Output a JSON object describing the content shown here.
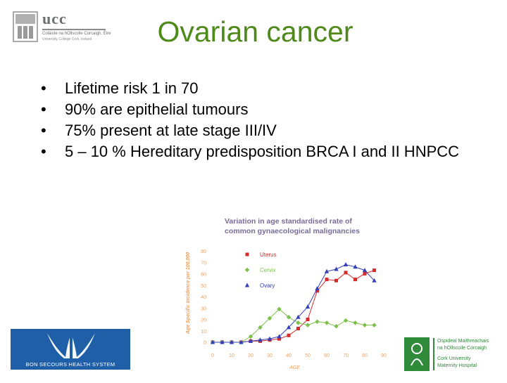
{
  "ucc_logo": {
    "name": "ucc",
    "subtitle_irish": "Coláiste na hOllscoile Corcaigh, Éire",
    "subtitle_english": "University College Cork, Ireland"
  },
  "slide": {
    "title": "Ovarian cancer",
    "bullet_marker": "•",
    "bullets": [
      "Lifetime risk 1 in 70",
      "90% are epithelial tumours",
      "75% present at late stage III/IV",
      "5 – 10 % Hereditary predisposition BRCA I and II HNPCC"
    ]
  },
  "bon_secours_logo": {
    "text": "BON SECOURS HEALTH SYSTEM"
  },
  "cumh_logo": {
    "line1": "Ospideal Maithreachais",
    "line2": "na hOllscoile Corcaigh",
    "line3": "Cork University",
    "line4": "Maternity Hospital"
  },
  "colors": {
    "title": "#4e8a1a",
    "chart_title": "#7b6a9b",
    "uterus": "#d42a2a",
    "cervix": "#7cc04a",
    "ovary": "#3540b8",
    "axis_text": "#f0a060"
  },
  "chart_data": {
    "type": "line",
    "title": "Variation in age standardised rate of common gynaecological malignancies",
    "xlabel": "AGE",
    "ylabel": "Age Specific Incidence per 100,000",
    "x": [
      0,
      10,
      20,
      30,
      40,
      50,
      60,
      70,
      80,
      90
    ],
    "xlim": [
      0,
      90
    ],
    "ylim": [
      0,
      80
    ],
    "yticks": [
      0,
      10,
      20,
      30,
      40,
      50,
      60,
      70,
      80
    ],
    "series": [
      {
        "name": "Uterus",
        "marker": "square",
        "x": [
          0,
          5,
          10,
          15,
          20,
          25,
          30,
          35,
          40,
          45,
          50,
          55,
          60,
          65,
          70,
          75,
          80,
          85
        ],
        "values": [
          0,
          0,
          0,
          0,
          1,
          1,
          2,
          3,
          6,
          12,
          20,
          45,
          55,
          54,
          61,
          55,
          60,
          63
        ]
      },
      {
        "name": "Cervix",
        "marker": "diamond",
        "x": [
          0,
          5,
          10,
          15,
          20,
          25,
          30,
          35,
          40,
          45,
          50,
          55,
          60,
          65,
          70,
          75,
          80,
          85
        ],
        "values": [
          0,
          0,
          0,
          0,
          5,
          13,
          21,
          29,
          22,
          17,
          15,
          18,
          17,
          14,
          19,
          17,
          15,
          15
        ]
      },
      {
        "name": "Ovary",
        "marker": "triangle",
        "x": [
          0,
          5,
          10,
          15,
          20,
          25,
          30,
          35,
          40,
          45,
          50,
          55,
          60,
          65,
          70,
          75,
          80,
          85
        ],
        "values": [
          0,
          0,
          0,
          0,
          1,
          2,
          3,
          5,
          13,
          22,
          31,
          47,
          62,
          64,
          68,
          66,
          63,
          54
        ]
      }
    ]
  }
}
